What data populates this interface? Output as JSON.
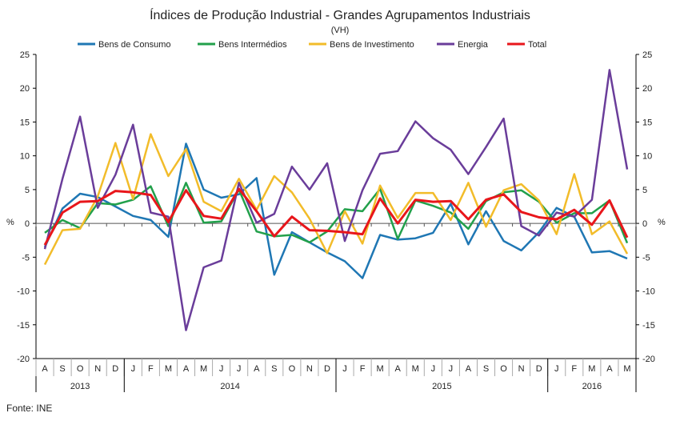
{
  "chart_data": {
    "type": "line",
    "title": "Índices de Produção Industrial - Grandes Agrupamentos Industriais",
    "subtitle": "(VH)",
    "ylabel": "%",
    "ylim": [
      -20,
      25
    ],
    "yticks": [
      25,
      20,
      15,
      10,
      5,
      0,
      -5,
      -10,
      -15,
      -20
    ],
    "grid": false,
    "legend": "top",
    "months": [
      "A",
      "S",
      "O",
      "N",
      "D",
      "J",
      "F",
      "M",
      "A",
      "M",
      "J",
      "J",
      "A",
      "S",
      "O",
      "N",
      "D",
      "J",
      "F",
      "M",
      "A",
      "M",
      "J",
      "J",
      "A",
      "S",
      "O",
      "N",
      "D",
      "J",
      "F",
      "M",
      "A",
      "M"
    ],
    "years": [
      {
        "label": "2013",
        "count": 5
      },
      {
        "label": "2014",
        "count": 12
      },
      {
        "label": "2015",
        "count": 12
      },
      {
        "label": "2016",
        "count": 5
      }
    ],
    "series": [
      {
        "name": "Bens de Consumo",
        "color": "#1f77b4",
        "values": [
          -3.5,
          2.2,
          4.4,
          3.9,
          2.5,
          1.1,
          0.5,
          -2.0,
          11.8,
          5.0,
          3.8,
          4.3,
          6.7,
          -7.6,
          -1.3,
          -2.8,
          -4.3,
          -5.6,
          -8.1,
          -1.7,
          -2.4,
          -2.2,
          -1.4,
          2.9,
          -3.1,
          1.8,
          -2.6,
          -4.0,
          -1.3,
          2.3,
          1.0,
          -4.3,
          -4.1,
          -5.2
        ]
      },
      {
        "name": "Bens Intermédios",
        "color": "#22a04b",
        "values": [
          -1.4,
          0.5,
          -0.7,
          3.0,
          2.8,
          3.5,
          5.5,
          -0.4,
          6.0,
          0.1,
          0.3,
          5.0,
          -1.2,
          -1.9,
          -1.7,
          -2.8,
          -1.2,
          2.1,
          1.8,
          5.1,
          -2.3,
          3.4,
          2.6,
          1.6,
          -0.8,
          3.3,
          4.6,
          4.9,
          3.2,
          0.1,
          1.5,
          1.5,
          3.4,
          -2.9
        ]
      },
      {
        "name": "Bens de Investimento",
        "color": "#f2bc2a",
        "values": [
          -6.1,
          -1.0,
          -0.8,
          4.0,
          11.9,
          3.6,
          13.2,
          7.0,
          11.0,
          3.2,
          1.8,
          6.6,
          2.0,
          7.0,
          4.6,
          0.7,
          -4.4,
          1.8,
          -3.0,
          5.6,
          0.8,
          4.5,
          4.5,
          0.5,
          6.0,
          -0.5,
          4.9,
          5.8,
          3.4,
          -1.6,
          7.3,
          -1.6,
          0.3,
          -4.5
        ]
      },
      {
        "name": "Energia",
        "color": "#6a3d9a",
        "values": [
          -3.8,
          6.6,
          15.8,
          2.3,
          7.2,
          14.6,
          1.6,
          1.0,
          -15.8,
          -6.5,
          -5.5,
          6.0,
          0.1,
          1.4,
          8.4,
          5.0,
          8.9,
          -2.6,
          4.9,
          10.3,
          10.7,
          15.1,
          12.6,
          10.9,
          7.3,
          11.3,
          15.5,
          -0.4,
          -1.8,
          1.6,
          1.0,
          3.5,
          22.7,
          8.0
        ]
      },
      {
        "name": "Total",
        "color": "#e8161b",
        "values": [
          -3.2,
          1.6,
          3.2,
          3.3,
          4.8,
          4.6,
          4.2,
          0.2,
          4.9,
          1.1,
          0.7,
          5.1,
          1.8,
          -1.9,
          1.0,
          -1.0,
          -1.1,
          -1.3,
          -1.6,
          3.7,
          0.0,
          3.5,
          3.2,
          3.3,
          0.6,
          3.5,
          4.3,
          1.7,
          0.9,
          0.6,
          2.0,
          -0.2,
          3.4,
          -2.1
        ]
      }
    ]
  },
  "source": "Fonte: INE"
}
